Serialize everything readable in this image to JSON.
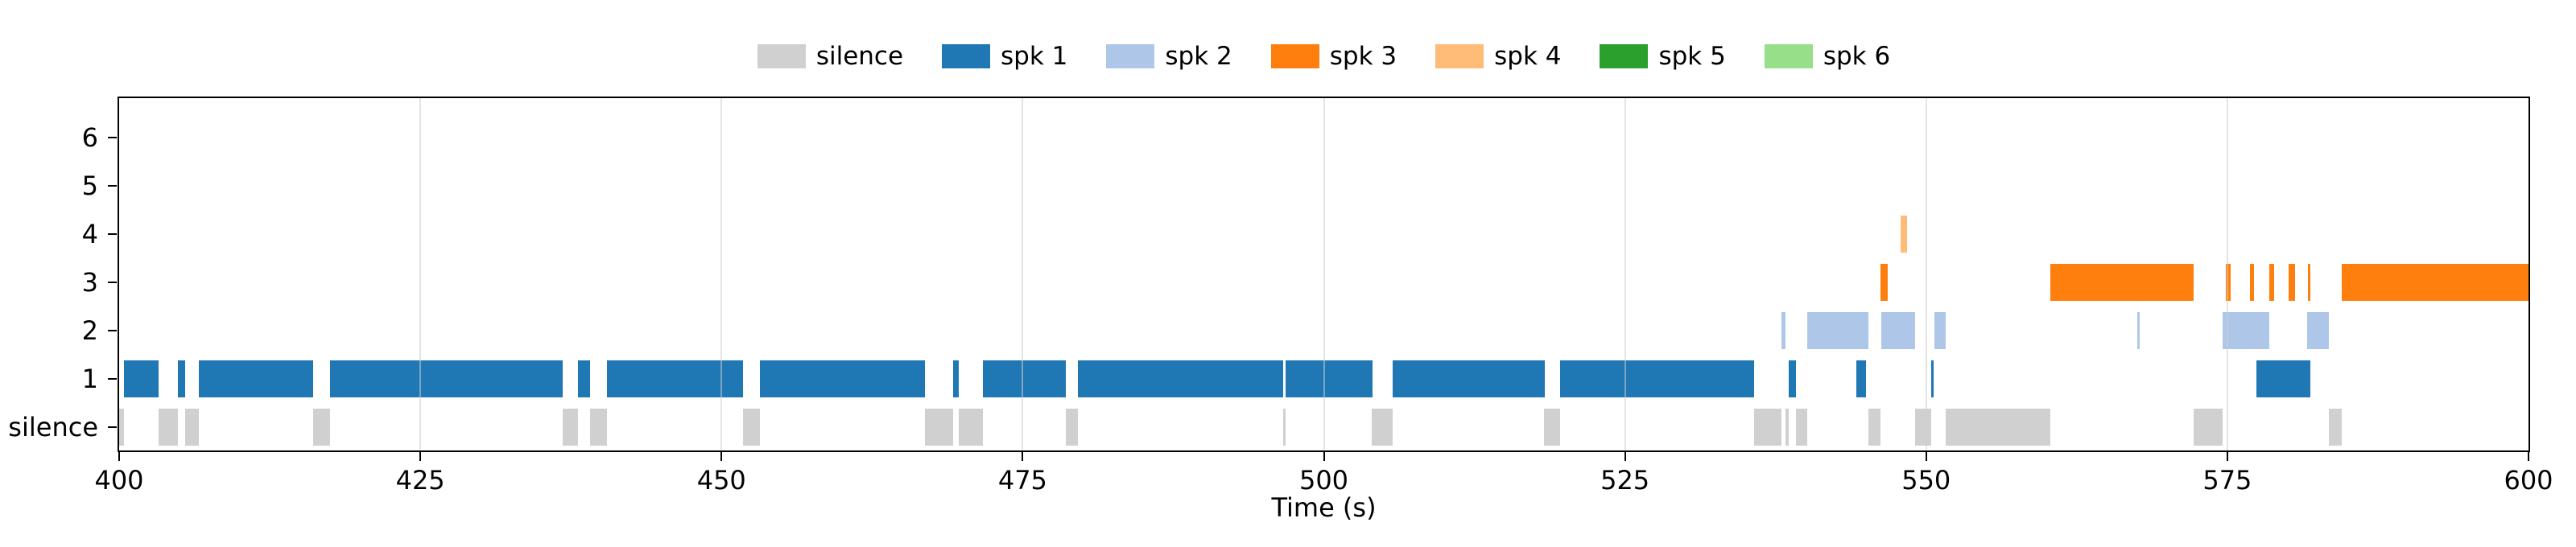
{
  "figure": {
    "background": "#ffffff"
  },
  "chart_data": {
    "type": "timeline",
    "title": "",
    "xlabel": "Time (s)",
    "xlim": [
      400,
      600
    ],
    "x_ticks": [
      400,
      425,
      450,
      475,
      500,
      525,
      550,
      575,
      600
    ],
    "rows_bottom_to_top": [
      "silence",
      "1",
      "2",
      "3",
      "4",
      "5",
      "6"
    ],
    "grid": {
      "vertical": true,
      "horizontal": false,
      "color": "#e7e7e7"
    },
    "legend_position": "upper center",
    "series": [
      {
        "name": "silence",
        "row": "silence",
        "color": "#d0d0d0",
        "segments": [
          [
            400.0,
            400.4
          ],
          [
            403.3,
            404.9
          ],
          [
            405.5,
            406.6
          ],
          [
            416.1,
            417.5
          ],
          [
            436.8,
            438.1
          ],
          [
            439.1,
            440.5
          ],
          [
            451.8,
            453.2
          ],
          [
            466.9,
            469.2
          ],
          [
            469.7,
            471.7
          ],
          [
            478.6,
            479.6
          ],
          [
            496.6,
            496.8
          ],
          [
            504.0,
            505.7
          ],
          [
            518.3,
            519.6
          ],
          [
            535.7,
            538.0
          ],
          [
            538.3,
            538.6
          ],
          [
            539.2,
            540.1
          ],
          [
            545.2,
            546.2
          ],
          [
            549.1,
            550.4
          ],
          [
            551.6,
            560.3
          ],
          [
            572.2,
            574.6
          ],
          [
            583.4,
            584.5
          ]
        ]
      },
      {
        "name": "spk 1",
        "row": "1",
        "color": "#1f77b4",
        "segments": [
          [
            400.4,
            403.3
          ],
          [
            404.9,
            405.5
          ],
          [
            406.6,
            416.1
          ],
          [
            417.5,
            436.8
          ],
          [
            438.1,
            439.1
          ],
          [
            440.5,
            451.8
          ],
          [
            453.2,
            466.9
          ],
          [
            469.2,
            469.7
          ],
          [
            471.7,
            478.6
          ],
          [
            479.6,
            496.6
          ],
          [
            496.8,
            504.0
          ],
          [
            505.7,
            518.3
          ],
          [
            519.6,
            535.7
          ],
          [
            538.6,
            539.2
          ],
          [
            544.2,
            545.0
          ],
          [
            550.4,
            550.6
          ],
          [
            577.4,
            581.9
          ]
        ]
      },
      {
        "name": "spk 2",
        "row": "2",
        "color": "#aec7e8",
        "segments": [
          [
            538.0,
            538.3
          ],
          [
            540.1,
            545.2
          ],
          [
            546.3,
            549.1
          ],
          [
            550.7,
            551.6
          ],
          [
            567.5,
            567.7
          ],
          [
            574.6,
            578.5
          ],
          [
            581.6,
            583.4
          ]
        ]
      },
      {
        "name": "spk 3",
        "row": "3",
        "color": "#ff7f0e",
        "segments": [
          [
            546.2,
            546.8
          ],
          [
            560.3,
            572.2
          ],
          [
            574.9,
            575.3
          ],
          [
            576.9,
            577.2
          ],
          [
            578.5,
            578.9
          ],
          [
            580.1,
            580.6
          ],
          [
            581.7,
            581.9
          ],
          [
            584.5,
            600.0
          ]
        ]
      },
      {
        "name": "spk 4",
        "row": "4",
        "color": "#ffbb78",
        "segments": [
          [
            547.9,
            548.4
          ]
        ]
      },
      {
        "name": "spk 5",
        "row": "5",
        "color": "#2ca02c",
        "segments": []
      },
      {
        "name": "spk 6",
        "row": "6",
        "color": "#98df8a",
        "segments": []
      }
    ]
  }
}
